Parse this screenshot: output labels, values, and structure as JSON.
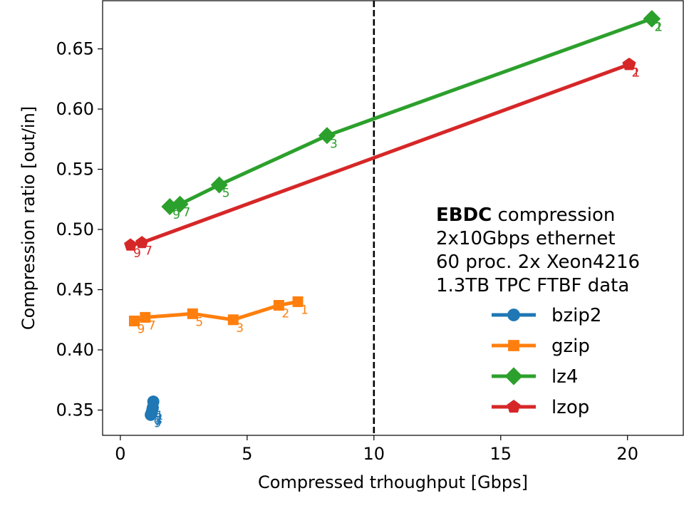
{
  "chart_data": {
    "type": "line",
    "xlabel": "Compressed trhoughput [Gbps]",
    "ylabel": "Compression ratio [out/in]",
    "xlim": [
      -0.7,
      22.2
    ],
    "ylim": [
      0.329,
      0.69
    ],
    "xticks": [
      0,
      5,
      10,
      15,
      20
    ],
    "xtick_labels": [
      "0",
      "5",
      "10",
      "15",
      "20"
    ],
    "yticks": [
      0.35,
      0.4,
      0.45,
      0.5,
      0.55,
      0.6,
      0.65
    ],
    "ytick_labels": [
      "0.35",
      "0.40",
      "0.45",
      "0.50",
      "0.55",
      "0.60",
      "0.65"
    ],
    "grid": false,
    "legend_position": "lower-right",
    "vline": {
      "x": 10,
      "style": "dashed",
      "color": "#000000"
    },
    "annotation": {
      "bold": "EBDC",
      "first_line_rest": " compression",
      "lines": [
        "2x10Gbps ethernet",
        "60 proc. 2x Xeon4216",
        "1.3TB TPC FTBF data"
      ]
    },
    "series": [
      {
        "name": "bzip2",
        "color": "#1f77b4",
        "marker": "circle",
        "points": [
          {
            "x": 1.3,
            "y": 0.357,
            "label": ""
          },
          {
            "x": 1.28,
            "y": 0.352,
            "label": "1"
          },
          {
            "x": 1.26,
            "y": 0.35,
            "label": "2"
          },
          {
            "x": 1.24,
            "y": 0.348,
            "label": "3"
          },
          {
            "x": 1.22,
            "y": 0.347,
            "label": "7"
          },
          {
            "x": 1.2,
            "y": 0.346,
            "label": "9"
          }
        ]
      },
      {
        "name": "gzip",
        "color": "#ff7f0e",
        "marker": "square",
        "points": [
          {
            "x": 0.55,
            "y": 0.424,
            "label": "9"
          },
          {
            "x": 0.98,
            "y": 0.427,
            "label": "7"
          },
          {
            "x": 2.85,
            "y": 0.43,
            "label": "5"
          },
          {
            "x": 4.45,
            "y": 0.425,
            "label": "3"
          },
          {
            "x": 6.25,
            "y": 0.437,
            "label": "2"
          },
          {
            "x": 7.0,
            "y": 0.44,
            "label": "1"
          }
        ]
      },
      {
        "name": "lz4",
        "color": "#2ca02c",
        "marker": "diamond",
        "points": [
          {
            "x": 1.95,
            "y": 0.519,
            "label": "9"
          },
          {
            "x": 2.35,
            "y": 0.521,
            "label": "7"
          },
          {
            "x": 3.9,
            "y": 0.537,
            "label": "5"
          },
          {
            "x": 8.15,
            "y": 0.578,
            "label": "3"
          },
          {
            "x": 20.95,
            "y": 0.675,
            "label": "2"
          },
          {
            "x": 20.97,
            "y": 0.675,
            "label": "1"
          }
        ]
      },
      {
        "name": "lzop",
        "color": "#d62728",
        "marker": "pentagon",
        "points": [
          {
            "x": 0.4,
            "y": 0.487,
            "label": "9"
          },
          {
            "x": 0.85,
            "y": 0.489,
            "label": "7"
          },
          {
            "x": 20.05,
            "y": 0.637,
            "label": "2"
          },
          {
            "x": 20.08,
            "y": 0.637,
            "label": "1"
          }
        ]
      }
    ]
  }
}
